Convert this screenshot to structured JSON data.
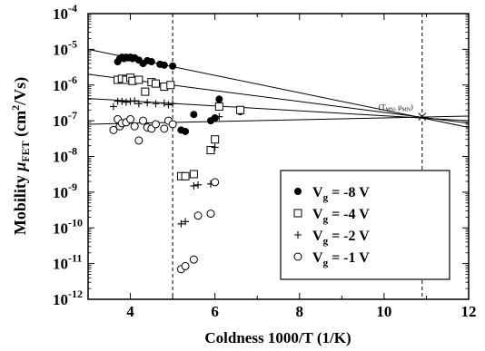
{
  "chart_data": {
    "type": "scatter",
    "xlabel": "Coldness 1000/T (1/K)",
    "ylabel_parts": {
      "main": "Mobility ",
      "symbol": "μ",
      "sub": "FET",
      "unit_pre": " (cm",
      "sup": "2",
      "unit_post": "/Vs)"
    },
    "xlim": [
      3,
      12
    ],
    "ylim_log10": [
      -12,
      -4
    ],
    "yscale": "log",
    "x_ticks": [
      {
        "v": 4,
        "label": "4"
      },
      {
        "v": 6,
        "label": "6"
      },
      {
        "v": 8,
        "label": "8"
      },
      {
        "v": 10,
        "label": "10"
      },
      {
        "v": 12,
        "label": "12"
      }
    ],
    "y_ticks": [
      {
        "exp": -4,
        "base": "10",
        "sup": "-4"
      },
      {
        "exp": -5,
        "base": "10",
        "sup": "-5"
      },
      {
        "exp": -6,
        "base": "10",
        "sup": "-6"
      },
      {
        "exp": -7,
        "base": "10",
        "sup": "-7"
      },
      {
        "exp": -8,
        "base": "10",
        "sup": "-8"
      },
      {
        "exp": -9,
        "base": "10",
        "sup": "-9"
      },
      {
        "exp": -10,
        "base": "10",
        "sup": "-10"
      },
      {
        "exp": -11,
        "base": "10",
        "sup": "-11"
      },
      {
        "exp": -12,
        "base": "10",
        "sup": "-12"
      }
    ],
    "vlines": [
      5.0,
      10.9
    ],
    "annotation": {
      "text": "(T",
      "sub1": "MN",
      "mid": ", μ",
      "sub2": "MN",
      "end": ")",
      "x": 10.9,
      "y": 1.3e-07
    },
    "fit_lines": [
      {
        "x0": 3,
        "y0": 1e-05,
        "x1": 12,
        "y1": 6.5e-08
      },
      {
        "x0": 3,
        "y0": 2e-06,
        "x1": 12,
        "y1": 8.5e-08
      },
      {
        "x0": 3,
        "y0": 4.2e-07,
        "x1": 12,
        "y1": 1e-07
      },
      {
        "x0": 3,
        "y0": 8e-08,
        "x1": 12,
        "y1": 1.35e-07
      }
    ],
    "series": [
      {
        "name": "V_g = -8 V",
        "marker": "filled-circle",
        "points": [
          [
            3.7,
            4.5e-06
          ],
          [
            3.75,
            5.5e-06
          ],
          [
            3.8,
            6e-06
          ],
          [
            3.85,
            5.5e-06
          ],
          [
            3.9,
            6e-06
          ],
          [
            3.95,
            5.8e-06
          ],
          [
            4.0,
            6e-06
          ],
          [
            4.05,
            5.5e-06
          ],
          [
            4.1,
            5.8e-06
          ],
          [
            4.2,
            5e-06
          ],
          [
            4.3,
            4e-06
          ],
          [
            4.4,
            4.8e-06
          ],
          [
            4.5,
            4.5e-06
          ],
          [
            4.7,
            3.8e-06
          ],
          [
            4.8,
            3.6e-06
          ],
          [
            5.0,
            3.4e-06
          ],
          [
            5.2,
            5.5e-08
          ],
          [
            5.3,
            5e-08
          ],
          [
            5.5,
            1.5e-07
          ],
          [
            5.9,
            1e-07
          ],
          [
            6.0,
            1.2e-07
          ],
          [
            6.1,
            4e-07
          ],
          [
            6.6,
            1.8e-07
          ]
        ]
      },
      {
        "name": "V_g = -4 V",
        "marker": "open-square",
        "points": [
          [
            3.7,
            1.4e-06
          ],
          [
            3.8,
            1.5e-06
          ],
          [
            3.9,
            1.4e-06
          ],
          [
            4.0,
            1.6e-06
          ],
          [
            4.05,
            1.3e-06
          ],
          [
            4.2,
            1.4e-06
          ],
          [
            4.35,
            6.5e-07
          ],
          [
            4.5,
            1.2e-06
          ],
          [
            4.6,
            1.1e-06
          ],
          [
            4.8,
            9e-07
          ],
          [
            4.95,
            1e-06
          ],
          [
            5.2,
            2.8e-09
          ],
          [
            5.3,
            2.8e-09
          ],
          [
            5.5,
            3.2e-09
          ],
          [
            5.9,
            1.5e-08
          ],
          [
            6.0,
            3e-08
          ],
          [
            6.1,
            2.5e-07
          ],
          [
            6.6,
            2e-07
          ]
        ]
      },
      {
        "name": "V_g = -2 V",
        "marker": "plus",
        "points": [
          [
            3.6,
            2.5e-07
          ],
          [
            3.7,
            3.5e-07
          ],
          [
            3.8,
            3.5e-07
          ],
          [
            3.9,
            3.3e-07
          ],
          [
            4.0,
            3.5e-07
          ],
          [
            4.1,
            3.6e-07
          ],
          [
            4.2,
            3e-07
          ],
          [
            4.3,
            1e-07
          ],
          [
            4.4,
            3.2e-07
          ],
          [
            4.6,
            3e-07
          ],
          [
            4.8,
            3.1e-07
          ],
          [
            4.9,
            2.8e-07
          ],
          [
            5.0,
            3e-07
          ],
          [
            5.2,
            1.3e-10
          ],
          [
            5.3,
            1.5e-10
          ],
          [
            5.5,
            1.5e-09
          ],
          [
            5.6,
            1.6e-09
          ],
          [
            5.9,
            1.7e-09
          ],
          [
            6.0,
            1.8e-08
          ],
          [
            6.1,
            1.3e-07
          ]
        ]
      },
      {
        "name": "V_g = -1 V",
        "marker": "open-circle",
        "points": [
          [
            3.6,
            5.5e-08
          ],
          [
            3.7,
            1.1e-07
          ],
          [
            3.75,
            7e-08
          ],
          [
            3.8,
            8.5e-08
          ],
          [
            3.9,
            9e-08
          ],
          [
            4.0,
            1.1e-07
          ],
          [
            4.1,
            7e-08
          ],
          [
            4.2,
            2.8e-08
          ],
          [
            4.3,
            1e-07
          ],
          [
            4.4,
            6.5e-08
          ],
          [
            4.5,
            6e-08
          ],
          [
            4.6,
            8e-08
          ],
          [
            4.8,
            6e-08
          ],
          [
            4.9,
            1e-07
          ],
          [
            5.0,
            8e-08
          ],
          [
            5.2,
            7e-12
          ],
          [
            5.3,
            8.5e-12
          ],
          [
            5.5,
            1.3e-11
          ],
          [
            5.6,
            2.2e-10
          ],
          [
            5.9,
            2.5e-10
          ],
          [
            6.0,
            1.9e-09
          ]
        ]
      }
    ],
    "legend": {
      "placement": "lower-right",
      "entries": [
        {
          "marker": "filled-circle",
          "label_main": "V",
          "label_sub": "g",
          "label_rest": " = -8 V"
        },
        {
          "marker": "open-square",
          "label_main": "V",
          "label_sub": "g",
          "label_rest": " = -4 V"
        },
        {
          "marker": "plus",
          "label_main": "V",
          "label_sub": "g",
          "label_rest": " = -2 V"
        },
        {
          "marker": "open-circle",
          "label_main": "V",
          "label_sub": "g",
          "label_rest": " = -1 V"
        }
      ]
    }
  }
}
